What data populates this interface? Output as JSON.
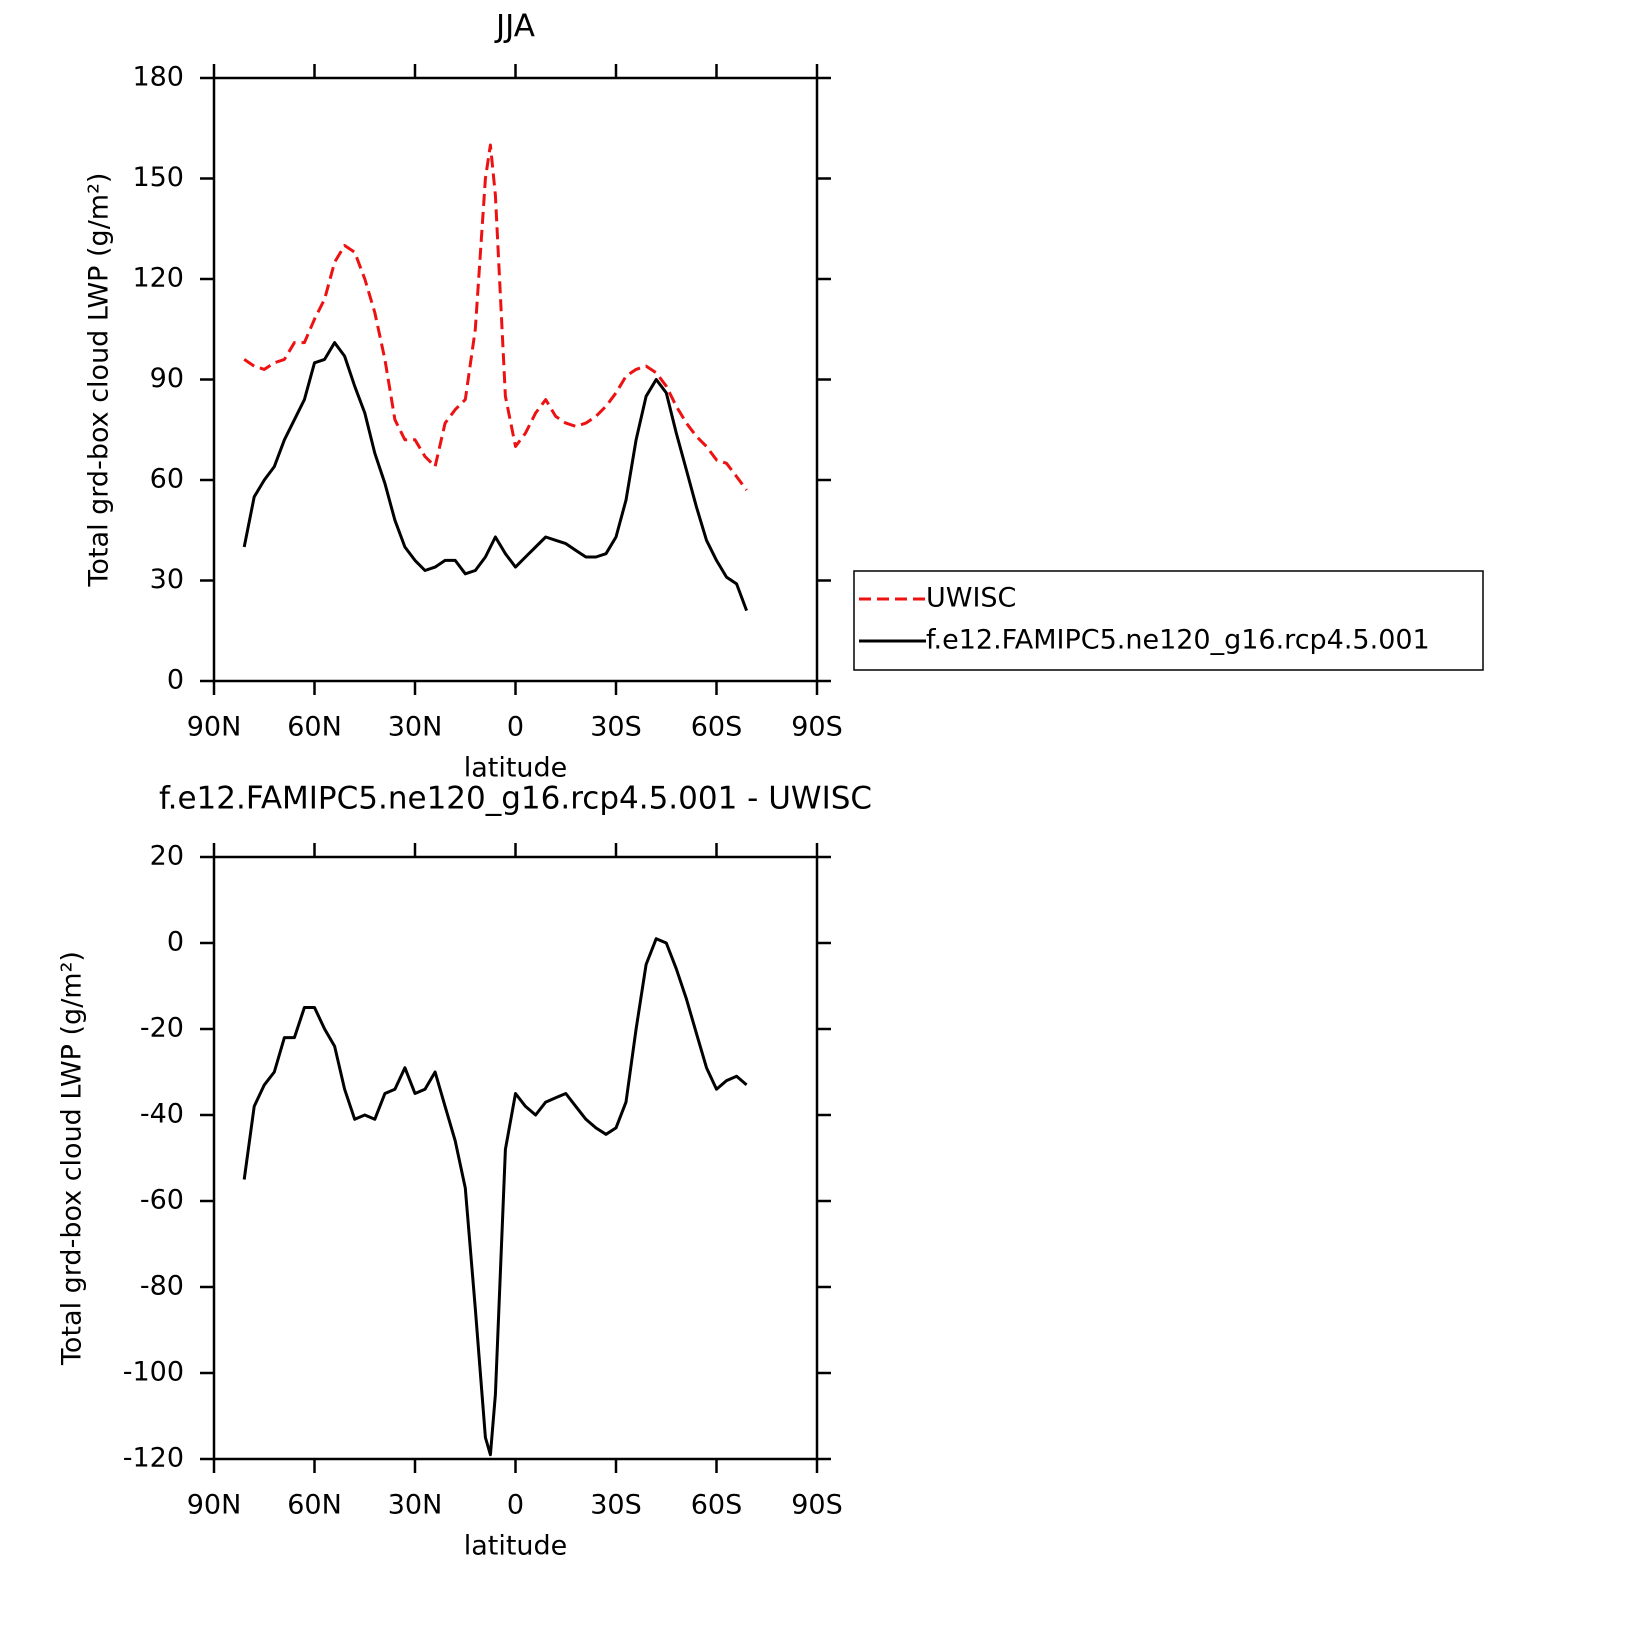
{
  "chart_data": [
    {
      "type": "line",
      "title": "JJA",
      "xlabel": "latitude",
      "ylabel": "Total grd-box cloud LWP (g/m²)",
      "x": [
        81,
        78,
        75,
        72,
        69,
        66,
        63,
        60,
        57,
        54,
        51,
        48,
        45,
        42,
        39,
        36,
        33,
        30,
        27,
        24,
        21,
        18,
        15,
        12,
        9,
        7.5,
        6,
        3,
        0,
        -3,
        -6,
        -9,
        -12,
        -15,
        -18,
        -21,
        -24,
        -27,
        -30,
        -33,
        -36,
        -39,
        -42,
        -45,
        -48,
        -51,
        -54,
        -57,
        -60,
        -63,
        -66,
        -69
      ],
      "series": [
        {
          "name": "UWISC",
          "color": "#ee1111",
          "line_style": "dashed",
          "values": [
            96,
            94,
            93,
            95,
            96,
            101,
            101,
            108,
            114,
            125,
            130,
            128,
            120,
            110,
            96,
            78,
            72,
            72,
            67,
            64,
            77,
            81,
            84,
            105,
            150,
            160,
            145,
            85,
            70,
            74,
            80,
            84,
            79,
            77,
            76,
            77,
            79,
            82,
            86,
            91,
            93,
            94,
            92,
            88,
            82,
            77,
            73,
            70,
            66,
            65,
            61,
            57
          ]
        },
        {
          "name": "f.e12.FAMIPC5.ne120_g16.rcp4.5.001",
          "color": "#000000",
          "line_style": "solid",
          "values": [
            40,
            55,
            60,
            64,
            72,
            78,
            84,
            95,
            96,
            101,
            97,
            88,
            80,
            68,
            59,
            48,
            40,
            36,
            33,
            34,
            36,
            36,
            32,
            33,
            37,
            40,
            43,
            38,
            34,
            37,
            40,
            43,
            42,
            41,
            39,
            37,
            37,
            38,
            43,
            54,
            72,
            85,
            90,
            86,
            74,
            63,
            52,
            42,
            36,
            31,
            29,
            21
          ]
        }
      ],
      "xlim": [
        90,
        -90
      ],
      "xticks": [
        {
          "value": 90,
          "label": "90N"
        },
        {
          "value": 60,
          "label": "60N"
        },
        {
          "value": 30,
          "label": "30N"
        },
        0,
        {
          "value": -30,
          "label": "30S"
        },
        {
          "value": -60,
          "label": "60S"
        },
        {
          "value": -90,
          "label": "90S"
        }
      ],
      "ylim": [
        0,
        180
      ],
      "yticks": [
        0,
        30,
        60,
        90,
        120,
        150,
        180
      ],
      "legend": "right"
    },
    {
      "type": "line",
      "title": "f.e12.FAMIPC5.ne120_g16.rcp4.5.001 - UWISC",
      "xlabel": "latitude",
      "ylabel": "Total grd-box cloud LWP (g/m²)",
      "x": [
        81,
        78,
        75,
        72,
        69,
        66,
        63,
        60,
        57,
        54,
        51,
        48,
        45,
        42,
        39,
        36,
        33,
        30,
        27,
        24,
        21,
        18,
        15,
        12,
        9,
        7.5,
        6,
        3,
        0,
        -3,
        -6,
        -9,
        -12,
        -15,
        -18,
        -21,
        -24,
        -27,
        -30,
        -33,
        -36,
        -39,
        -42,
        -45,
        -48,
        -51,
        -54,
        -57,
        -60,
        -63,
        -66,
        -69
      ],
      "series": [
        {
          "color": "#000000",
          "line_style": "solid",
          "values": [
            -55,
            -38,
            -33,
            -30,
            -22,
            -22,
            -15,
            -15,
            -20,
            -24,
            -34,
            -41,
            -40,
            -41,
            -35,
            -34,
            -29,
            -35,
            -34,
            -30,
            -38,
            -46,
            -57,
            -85,
            -115,
            -119,
            -105,
            -48,
            -35,
            -38,
            -40,
            -37,
            -36,
            -35,
            -38,
            -41,
            -43,
            -44.5,
            -43,
            -37,
            -20,
            -5,
            1,
            0,
            -6,
            -13,
            -21,
            -29,
            -34,
            -32,
            -31,
            -33
          ]
        }
      ],
      "xlim": [
        90,
        -90
      ],
      "xticks": [
        {
          "value": 90,
          "label": "90N"
        },
        {
          "value": 60,
          "label": "60N"
        },
        {
          "value": 30,
          "label": "30N"
        },
        0,
        {
          "value": -30,
          "label": "30S"
        },
        {
          "value": -60,
          "label": "60S"
        },
        {
          "value": -90,
          "label": "90S"
        }
      ],
      "ylim": [
        -120,
        20
      ],
      "yticks": [
        -120,
        -100,
        -80,
        -60,
        -40,
        -20,
        0,
        20
      ]
    }
  ]
}
